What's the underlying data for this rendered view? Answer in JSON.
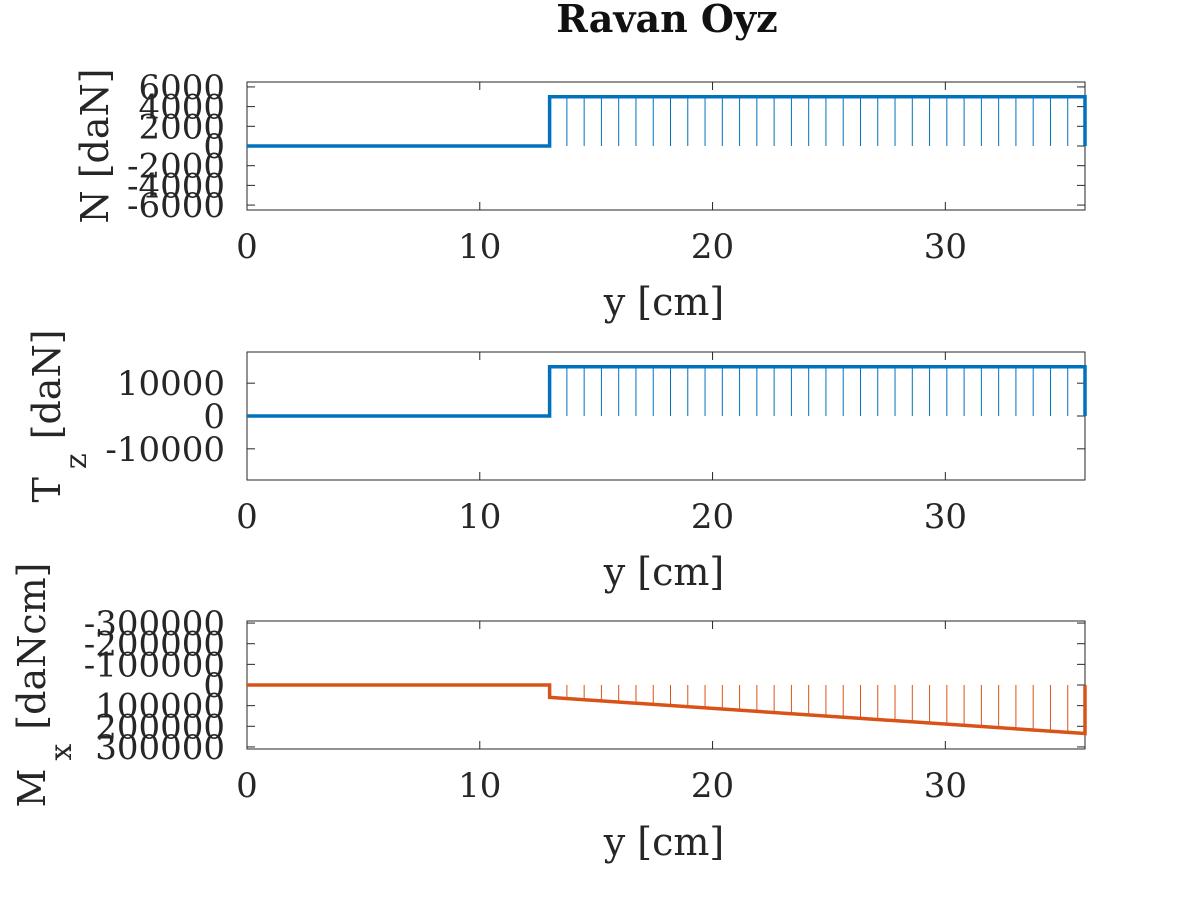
{
  "figure_title": "Ravan Oyz",
  "chart_data": [
    {
      "type": "line",
      "subplot": "axial-force",
      "ylabel": "N [daN]",
      "xlabel": "y [cm]",
      "xlim": [
        0,
        36
      ],
      "ylim": [
        -6500,
        6500
      ],
      "xticks": [
        0,
        10,
        20,
        30
      ],
      "yticks": [
        -6000,
        -4000,
        -2000,
        0,
        2000,
        4000,
        6000
      ],
      "ytick_labels": [
        "-6000",
        "-4000",
        "-2000",
        "0",
        "2000",
        "4000",
        "6000"
      ],
      "y_reversed": false,
      "hatched_fill": true,
      "color": "#0072BD",
      "series": [
        {
          "x": [
            0,
            13,
            13,
            36,
            36
          ],
          "y": [
            0,
            0,
            5000,
            5000,
            0
          ]
        }
      ]
    },
    {
      "type": "line",
      "subplot": "shear-force",
      "ylabel": "T",
      "ylabel_subscript": "z",
      "ylabel_suffix": "[daN]",
      "xlabel": "y [cm]",
      "xlim": [
        0,
        36
      ],
      "ylim": [
        -19500,
        19500
      ],
      "xticks": [
        0,
        10,
        20,
        30
      ],
      "yticks": [
        -10000,
        0,
        10000
      ],
      "ytick_labels": [
        "-10000",
        "0",
        "10000"
      ],
      "y_reversed": false,
      "hatched_fill": true,
      "color": "#0072BD",
      "series": [
        {
          "x": [
            0,
            13,
            13,
            36,
            36
          ],
          "y": [
            0,
            0,
            15000,
            15000,
            0
          ]
        }
      ]
    },
    {
      "type": "line",
      "subplot": "bending-moment",
      "ylabel": "M",
      "ylabel_subscript": "x",
      "ylabel_suffix": "[daNcm]",
      "xlabel": "y [cm]",
      "xlim": [
        0,
        36
      ],
      "ylim": [
        -310000,
        310000
      ],
      "xticks": [
        0,
        10,
        20,
        30
      ],
      "yticks": [
        -300000,
        -200000,
        -100000,
        0,
        100000,
        200000,
        300000
      ],
      "ytick_labels": [
        "-300000",
        "-200000",
        "-100000",
        "0",
        "100000",
        "200000",
        "300000"
      ],
      "y_reversed": true,
      "hatched_fill": true,
      "color": "#D95319",
      "series": [
        {
          "x": [
            0,
            13,
            13,
            36,
            36
          ],
          "y": [
            0,
            0,
            60000,
            235000,
            0
          ]
        }
      ]
    }
  ]
}
